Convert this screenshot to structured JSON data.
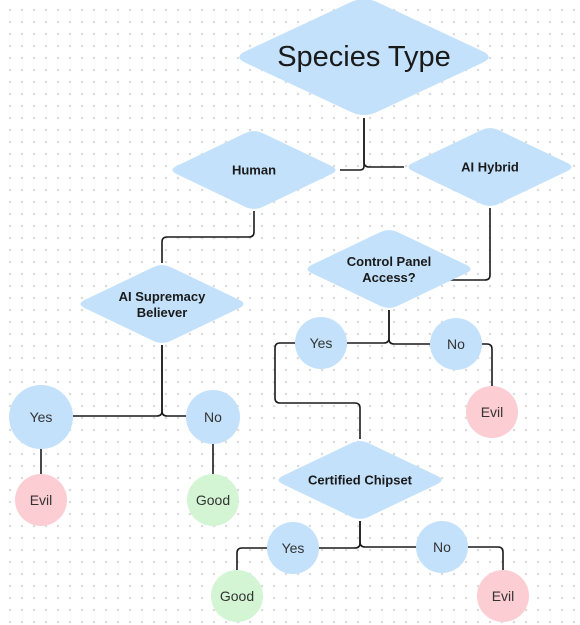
{
  "colors": {
    "diamond": "#c3e1fb",
    "circle_blue": "#c3e1fb",
    "good": "#d3f5d4",
    "evil": "#fccdd2",
    "line": "#1a1a1a"
  },
  "nodes": {
    "species_type": "Species Type",
    "human": "Human",
    "ai_hybrid": "AI Hybrid",
    "ai_supremacy_believer": [
      "AI Supremacy",
      "Believer"
    ],
    "control_panel_access": [
      "Control Panel",
      "Access?"
    ],
    "certified_chipset": "Certified Chipset",
    "human_yes": "Yes",
    "human_no": "No",
    "human_evil": "Evil",
    "human_good": "Good",
    "cp_yes": "Yes",
    "cp_no": "No",
    "cp_evil": "Evil",
    "chip_yes": "Yes",
    "chip_no": "No",
    "chip_good": "Good",
    "chip_evil": "Evil"
  },
  "edges": [
    [
      "species_type",
      "human"
    ],
    [
      "species_type",
      "ai_hybrid"
    ],
    [
      "human",
      "ai_supremacy_believer"
    ],
    [
      "ai_hybrid",
      "control_panel_access"
    ],
    [
      "ai_supremacy_believer",
      "human_yes"
    ],
    [
      "ai_supremacy_believer",
      "human_no"
    ],
    [
      "human_yes",
      "human_evil"
    ],
    [
      "human_no",
      "human_good"
    ],
    [
      "control_panel_access",
      "cp_yes"
    ],
    [
      "control_panel_access",
      "cp_no"
    ],
    [
      "cp_no",
      "cp_evil"
    ],
    [
      "cp_yes",
      "certified_chipset"
    ],
    [
      "certified_chipset",
      "chip_yes"
    ],
    [
      "certified_chipset",
      "chip_no"
    ],
    [
      "chip_yes",
      "chip_good"
    ],
    [
      "chip_no",
      "chip_evil"
    ]
  ]
}
